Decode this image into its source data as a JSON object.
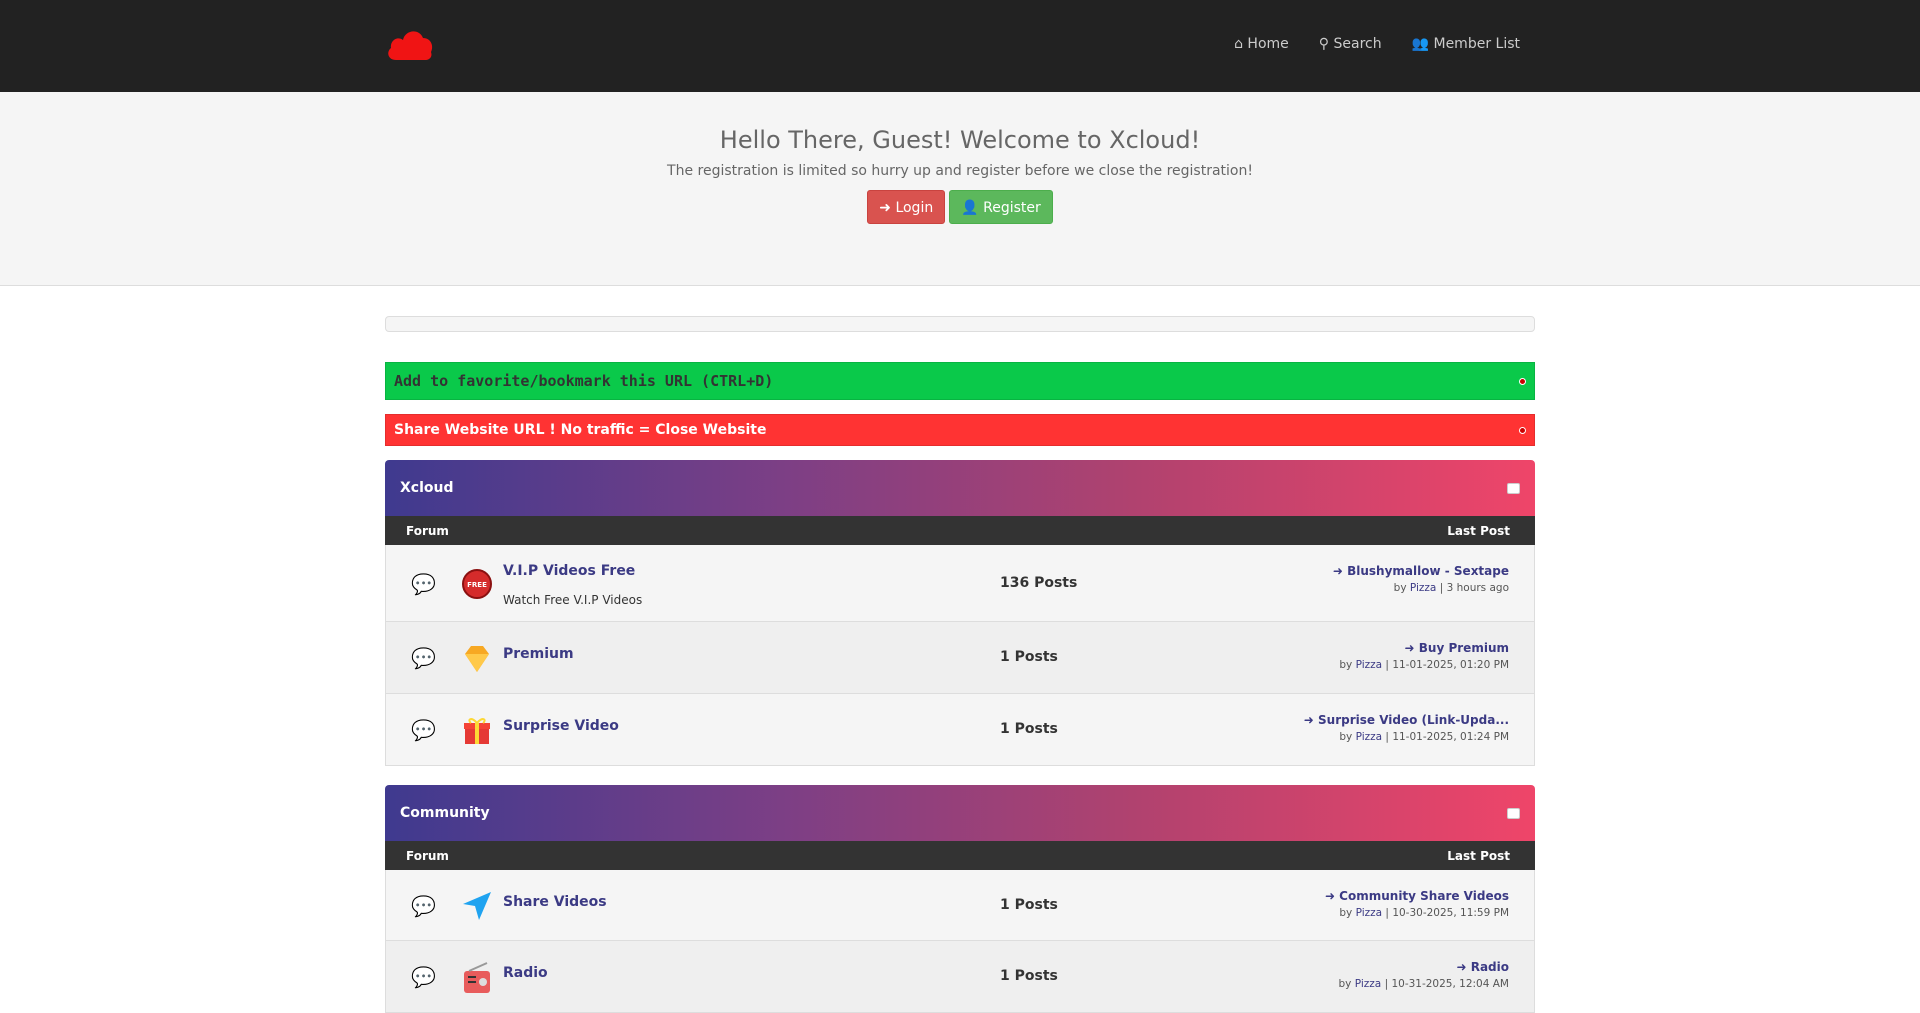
{
  "nav": {
    "home": "Home",
    "search": "Search",
    "members": "Member List"
  },
  "welcome": {
    "title": "Hello There, Guest! Welcome to Xcloud!",
    "subtitle": "The registration is limited so hurry up and register before we close the registration!",
    "login": "Login",
    "register": "Register"
  },
  "notices": {
    "bookmark": "Add to favorite/bookmark this URL (CTRL+D)",
    "share": "Share Website URL ! No traffic = Close Website"
  },
  "colors": {
    "brand": "#ff1a1a",
    "accent": "#3b3a84"
  },
  "categories": [
    {
      "title": "Xcloud",
      "col_forum": "Forum",
      "col_last": "Last Post",
      "forums": [
        {
          "name": "V.I.P Videos Free",
          "desc": "Watch Free V.I.P Videos",
          "posts": "136 Posts",
          "last_title": "Blushymallow - Sextape",
          "by": "by",
          "user": "Pizza",
          "time": "3 hours ago",
          "icon": "free-badge-icon"
        },
        {
          "name": "Premium",
          "posts": "1 Posts",
          "last_title": "Buy Premium",
          "by": "by",
          "user": "Pizza",
          "time": "11-01-2025, 01:20 PM",
          "icon": "diamond-icon"
        },
        {
          "name": "Surprise Video",
          "posts": "1 Posts",
          "last_title": "Surprise Video (Link-Upda...",
          "by": "by",
          "user": "Pizza",
          "time": "11-01-2025, 01:24 PM",
          "icon": "gift-icon"
        }
      ]
    },
    {
      "title": "Community",
      "col_forum": "Forum",
      "col_last": "Last Post",
      "forums": [
        {
          "name": "Share Videos",
          "posts": "1 Posts",
          "last_title": "Community Share Videos",
          "by": "by",
          "user": "Pizza",
          "time": "10-30-2025, 11:59 PM",
          "icon": "paper-plane-icon"
        },
        {
          "name": "Radio",
          "posts": "1 Posts",
          "last_title": "Radio",
          "by": "by",
          "user": "Pizza",
          "time": "10-31-2025, 12:04 AM",
          "icon": "radio-icon"
        }
      ]
    }
  ]
}
